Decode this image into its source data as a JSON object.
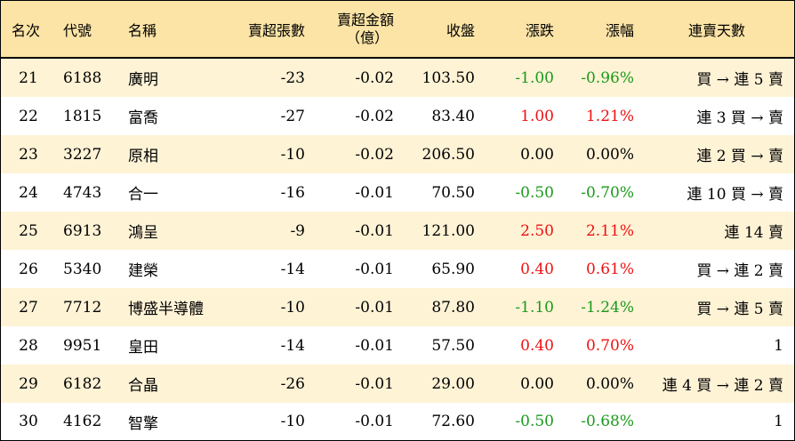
{
  "header": {
    "rank": "名次",
    "code": "代號",
    "name": "名稱",
    "sell_volume": "賣超張數",
    "sell_amount_line1": "賣超金額",
    "sell_amount_line2": "（億）",
    "close": "收盤",
    "change": "漲跌",
    "change_pct": "漲幅",
    "streak": "連賣天數"
  },
  "colors": {
    "header_bg": "#fce4a6",
    "stripe_bg": "#fff3d6",
    "up": "#ee1111",
    "down": "#1a9a1a"
  },
  "rows": [
    {
      "rank": "21",
      "code": "6188",
      "name": "廣明",
      "vol": "-23",
      "amt": "-0.02",
      "close": "103.50",
      "chg": "-1.00",
      "pct": "-0.96%",
      "dir": "down",
      "streak": "買 → 連 5 賣"
    },
    {
      "rank": "22",
      "code": "1815",
      "name": "富喬",
      "vol": "-27",
      "amt": "-0.02",
      "close": "83.40",
      "chg": "1.00",
      "pct": "1.21%",
      "dir": "up",
      "streak": "連 3 買 → 賣"
    },
    {
      "rank": "23",
      "code": "3227",
      "name": "原相",
      "vol": "-10",
      "amt": "-0.02",
      "close": "206.50",
      "chg": "0.00",
      "pct": "0.00%",
      "dir": "flat",
      "streak": "連 2 買 → 賣"
    },
    {
      "rank": "24",
      "code": "4743",
      "name": "合一",
      "vol": "-16",
      "amt": "-0.01",
      "close": "70.50",
      "chg": "-0.50",
      "pct": "-0.70%",
      "dir": "down",
      "streak": "連 10 買 → 賣"
    },
    {
      "rank": "25",
      "code": "6913",
      "name": "鴻呈",
      "vol": "-9",
      "amt": "-0.01",
      "close": "121.00",
      "chg": "2.50",
      "pct": "2.11%",
      "dir": "up",
      "streak": "連 14 賣"
    },
    {
      "rank": "26",
      "code": "5340",
      "name": "建榮",
      "vol": "-14",
      "amt": "-0.01",
      "close": "65.90",
      "chg": "0.40",
      "pct": "0.61%",
      "dir": "up",
      "streak": "買 → 連 2 賣"
    },
    {
      "rank": "27",
      "code": "7712",
      "name": "博盛半導體",
      "vol": "-10",
      "amt": "-0.01",
      "close": "87.80",
      "chg": "-1.10",
      "pct": "-1.24%",
      "dir": "down",
      "streak": "買 → 連 5 賣"
    },
    {
      "rank": "28",
      "code": "9951",
      "name": "皇田",
      "vol": "-14",
      "amt": "-0.01",
      "close": "57.50",
      "chg": "0.40",
      "pct": "0.70%",
      "dir": "up",
      "streak": "1"
    },
    {
      "rank": "29",
      "code": "6182",
      "name": "合晶",
      "vol": "-26",
      "amt": "-0.01",
      "close": "29.00",
      "chg": "0.00",
      "pct": "0.00%",
      "dir": "flat",
      "streak": "連 4 買 → 連 2 賣"
    },
    {
      "rank": "30",
      "code": "4162",
      "name": "智擎",
      "vol": "-10",
      "amt": "-0.01",
      "close": "72.60",
      "chg": "-0.50",
      "pct": "-0.68%",
      "dir": "down",
      "streak": "1"
    }
  ]
}
